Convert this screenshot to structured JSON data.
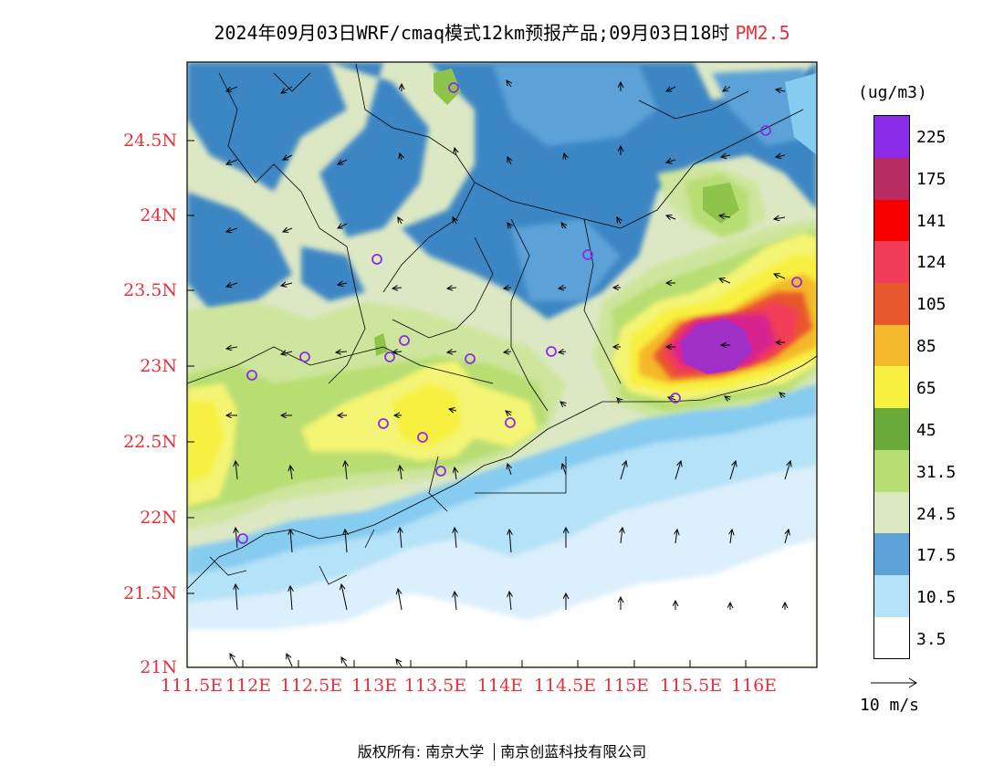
{
  "title": {
    "text": "2024年09月03日WRF/cmaq模式12km预报产品;09月03日18时",
    "variable": "PM2.5"
  },
  "axes": {
    "lat_labels": [
      "24.5N",
      "24N",
      "23.5N",
      "23N",
      "22.5N",
      "22N",
      "21.5N",
      "21N"
    ],
    "lon_labels": [
      "111.5E",
      "112E",
      "112.5E",
      "113E",
      "113.5E",
      "114E",
      "114.5E",
      "115E",
      "115.5E",
      "116E"
    ]
  },
  "colorbar": {
    "unit": "(ug/m3)",
    "colors": [
      "#ffffff",
      "#dbeffc",
      "#b4e2f8",
      "#86cbf0",
      "#5ca2d8",
      "#3d86c4",
      "#dce8c4",
      "#cde59c",
      "#b8dd72",
      "#8ec44c",
      "#6aaa3a",
      "#f4f474",
      "#f8f040",
      "#f4d010",
      "#f4b82c",
      "#f49010",
      "#e8582c",
      "#f06868",
      "#f03c58",
      "#f0103c",
      "#f80000",
      "#d82090",
      "#b82c64",
      "#a030c8",
      "#8a2ce8"
    ],
    "labels": [
      "3.5",
      "10.5",
      "17.5",
      "24.5",
      "31.5",
      "45",
      "65",
      "85",
      "105",
      "124",
      "141",
      "175",
      "225"
    ]
  },
  "wind_reference": {
    "label": "10 m/s"
  },
  "copyright": {
    "prefix": "版权所有:",
    "org1": "南京大学",
    "org2": "南京创蓝科技有限公司"
  }
}
